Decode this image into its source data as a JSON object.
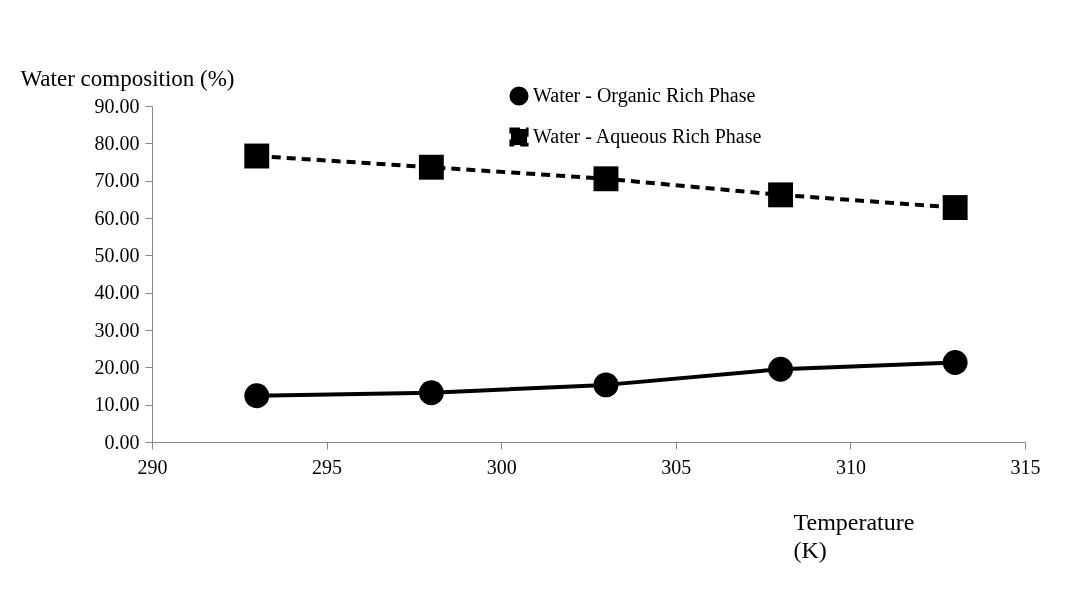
{
  "chart_data": {
    "type": "line",
    "xlabel": "Temperature (K)",
    "ylabel": "Water composition (%)",
    "x": [
      293,
      298,
      303,
      308,
      313
    ],
    "series": [
      {
        "name": "Water - Organic Rich Phase",
        "color": "#000000",
        "marker": "circle",
        "line_style": "solid",
        "values": [
          12.4,
          13.2,
          15.3,
          19.5,
          21.3
        ]
      },
      {
        "name": "Water - Aqueous Rich Phase",
        "color": "#000000",
        "marker": "square",
        "line_style": "dashed",
        "values": [
          76.6,
          73.6,
          70.5,
          66.2,
          62.8
        ]
      }
    ],
    "xlim": [
      290,
      315
    ],
    "xticks": [
      290,
      295,
      300,
      305,
      310,
      315
    ],
    "ylim": [
      0,
      90
    ],
    "yticks": [
      {
        "value": 0,
        "label": "0.00"
      },
      {
        "value": 10,
        "label": "10.00"
      },
      {
        "value": 20,
        "label": "20.00"
      },
      {
        "value": 30,
        "label": "30.00"
      },
      {
        "value": 40,
        "label": "40.00"
      },
      {
        "value": 50,
        "label": "50.00"
      },
      {
        "value": 60,
        "label": "60.00"
      },
      {
        "value": 70,
        "label": "70.00"
      },
      {
        "value": 80,
        "label": "80.00"
      },
      {
        "value": 90,
        "label": "90.00"
      }
    ],
    "grid": false,
    "legend": "top right"
  }
}
